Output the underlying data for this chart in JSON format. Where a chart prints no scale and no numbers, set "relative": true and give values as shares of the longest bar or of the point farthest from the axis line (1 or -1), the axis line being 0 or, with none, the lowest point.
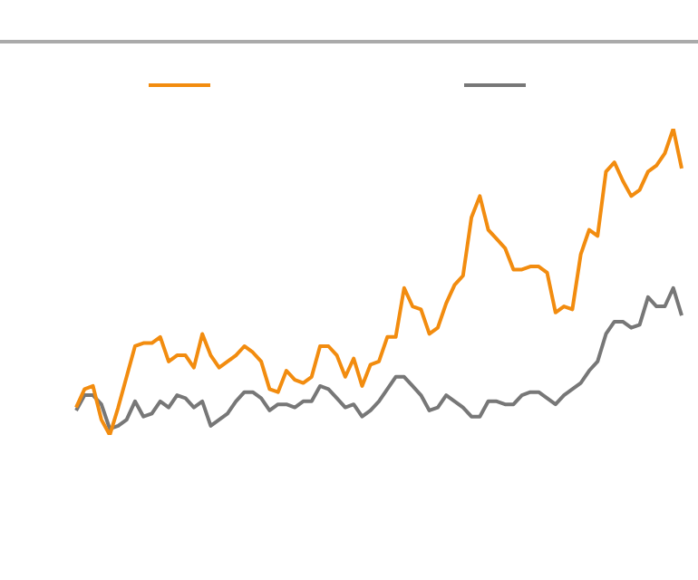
{
  "chart_data": {
    "type": "line",
    "relative": true,
    "categories": [
      null,
      null,
      null,
      null,
      null,
      null,
      null,
      null,
      null,
      null,
      null,
      null,
      null,
      null,
      null,
      null,
      null,
      null,
      null,
      null,
      null,
      null,
      null,
      null,
      null,
      null,
      null,
      null,
      null,
      null,
      null,
      null,
      null,
      null,
      null,
      null,
      null,
      null,
      null,
      null,
      null,
      null,
      null,
      null,
      null,
      null,
      null,
      null,
      null,
      null,
      null,
      null,
      null,
      null,
      null,
      null,
      null,
      null,
      null,
      null,
      null,
      null,
      null,
      null,
      null,
      null,
      null,
      null,
      null,
      null,
      null,
      null,
      null
    ],
    "series": [
      {
        "color": "#f28c0f",
        "values": [
          0.09,
          0.15,
          0.16,
          0.05,
          0,
          0.09,
          0.19,
          0.29,
          0.3,
          0.3,
          0.32,
          0.24,
          0.26,
          0.26,
          0.22,
          0.33,
          0.26,
          0.22,
          0.24,
          0.26,
          0.29,
          0.27,
          0.24,
          0.15,
          0.14,
          0.21,
          0.18,
          0.17,
          0.19,
          0.29,
          0.29,
          0.26,
          0.19,
          0.25,
          0.16,
          0.23,
          0.24,
          0.32,
          0.32,
          0.48,
          0.42,
          0.41,
          0.33,
          0.35,
          0.43,
          0.49,
          0.52,
          0.71,
          0.78,
          0.67,
          0.64,
          0.61,
          0.54,
          0.54,
          0.55,
          0.55,
          0.53,
          0.4,
          0.42,
          0.41,
          0.59,
          0.67,
          0.65,
          0.86,
          0.89,
          0.83,
          0.78,
          0.8,
          0.86,
          0.88,
          0.92,
          1,
          0.87
        ]
      },
      {
        "color": "#777777",
        "values": [
          0.08,
          0.13,
          0.13,
          0.1,
          0.02,
          0.03,
          0.05,
          0.11,
          0.06,
          0.07,
          0.11,
          0.09,
          0.13,
          0.12,
          0.09,
          0.11,
          0.03,
          0.05,
          0.07,
          0.11,
          0.14,
          0.14,
          0.12,
          0.08,
          0.1,
          0.1,
          0.09,
          0.11,
          0.11,
          0.16,
          0.15,
          0.12,
          0.09,
          0.1,
          0.06,
          0.08,
          0.11,
          0.15,
          0.19,
          0.19,
          0.16,
          0.13,
          0.08,
          0.09,
          0.13,
          0.11,
          0.09,
          0.06,
          0.06,
          0.11,
          0.11,
          0.1,
          0.1,
          0.13,
          0.14,
          0.14,
          0.12,
          0.1,
          0.13,
          0.15,
          0.17,
          0.21,
          0.24,
          0.33,
          0.37,
          0.37,
          0.35,
          0.36,
          0.45,
          0.42,
          0.42,
          0.48,
          0.39
        ]
      }
    ]
  }
}
